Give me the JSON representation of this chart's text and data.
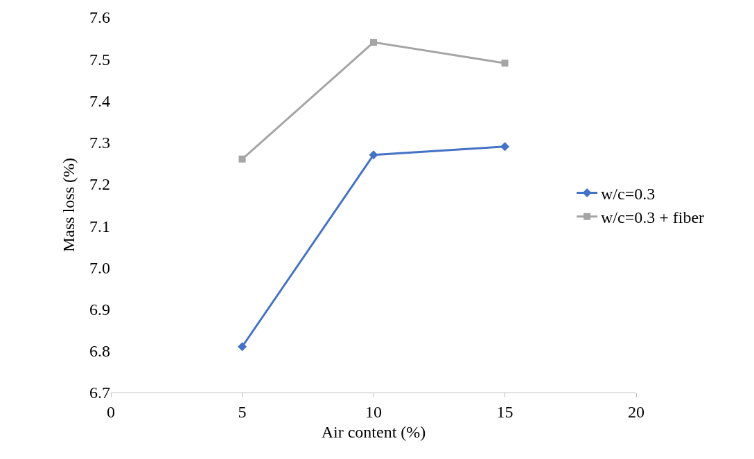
{
  "chart_data": {
    "type": "line",
    "xlabel": "Air content (%)",
    "ylabel": "Mass loss (%)",
    "x": [
      5,
      10,
      15
    ],
    "series": [
      {
        "name": "w/c=0.3",
        "color": "#4472c4",
        "values": [
          6.81,
          7.27,
          7.29
        ],
        "marker": "diamond"
      },
      {
        "name": "w/c=0.3 + fiber",
        "color": "#a5a5a5",
        "values": [
          7.26,
          7.54,
          7.49
        ],
        "marker": "square"
      }
    ],
    "xlim": [
      0,
      20
    ],
    "xticks": [
      0,
      5,
      10,
      15,
      20
    ],
    "ylim": [
      6.7,
      7.6
    ],
    "yticks": [
      {
        "value": 6.7,
        "label": "6.7"
      },
      {
        "value": 6.8,
        "label": "6.8"
      },
      {
        "value": 6.9,
        "label": "6.9"
      },
      {
        "value": 7.0,
        "label": "7.0"
      },
      {
        "value": 7.1,
        "label": "7.1"
      },
      {
        "value": 7.2,
        "label": "7.2"
      },
      {
        "value": 7.3,
        "label": "7.3"
      },
      {
        "value": 7.4,
        "label": "7.4"
      },
      {
        "value": 7.5,
        "label": "7.5"
      },
      {
        "value": 7.6,
        "label": "7.6"
      }
    ],
    "grid": false,
    "legend": "right",
    "line_style": "solid"
  }
}
